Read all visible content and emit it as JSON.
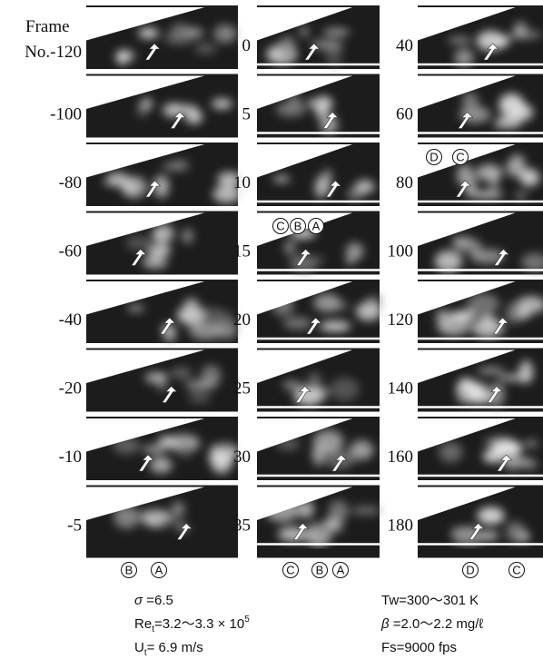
{
  "header": "Frame",
  "columns": [
    {
      "labels": [
        "No.-120",
        "-100",
        "-80",
        "-60",
        "-40",
        "-20",
        "-10",
        "-5"
      ]
    },
    {
      "labels": [
        "0",
        "5",
        "10",
        "15",
        "20",
        "25",
        "30",
        "35"
      ]
    },
    {
      "labels": [
        "40",
        "60",
        "80",
        "100",
        "120",
        "140",
        "160",
        "180"
      ]
    }
  ],
  "annotations": [
    [
      "B",
      "A"
    ],
    [
      "C",
      "B",
      "A"
    ],
    [
      "C",
      "B",
      "A"
    ],
    [
      "D",
      "C"
    ],
    [
      "D",
      "C"
    ]
  ],
  "parameters": {
    "sigma": {
      "symbol": "σ",
      "rest": " =6.5"
    },
    "re": {
      "base": "Re",
      "sub": "t",
      "rest": "=3.2～3.3 × 10",
      "sup": "5"
    },
    "u": {
      "base": "U",
      "sub": "t",
      "rest": "= 6.9 m/s"
    },
    "tw": {
      "text": "Tw=300～301 K"
    },
    "beta": {
      "symbol": "β",
      "rest": " =2.0～2.2 mg/ℓ"
    },
    "fs": {
      "text": "Fs=9000 fps"
    }
  }
}
